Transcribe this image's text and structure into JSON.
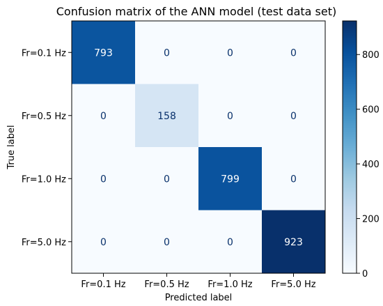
{
  "chart_data": {
    "type": "heatmap",
    "title": "Confusion matrix of the ANN model (test data set)",
    "xlabel": "Predicted label",
    "ylabel": "True label",
    "x_categories": [
      "Fr=0.1 Hz",
      "Fr=0.5 Hz",
      "Fr=1.0 Hz",
      "Fr=5.0 Hz"
    ],
    "y_categories": [
      "Fr=0.1 Hz",
      "Fr=0.5 Hz",
      "Fr=1.0 Hz",
      "Fr=5.0 Hz"
    ],
    "values": [
      [
        793,
        0,
        0,
        0
      ],
      [
        0,
        158,
        0,
        0
      ],
      [
        0,
        0,
        799,
        0
      ],
      [
        0,
        0,
        0,
        923
      ]
    ],
    "colorbar": {
      "range": [
        0,
        923
      ],
      "ticks": [
        0,
        200,
        400,
        600,
        800
      ],
      "colormap": "Blues",
      "low_color": "#f7fbff",
      "high_color": "#08306b"
    }
  }
}
